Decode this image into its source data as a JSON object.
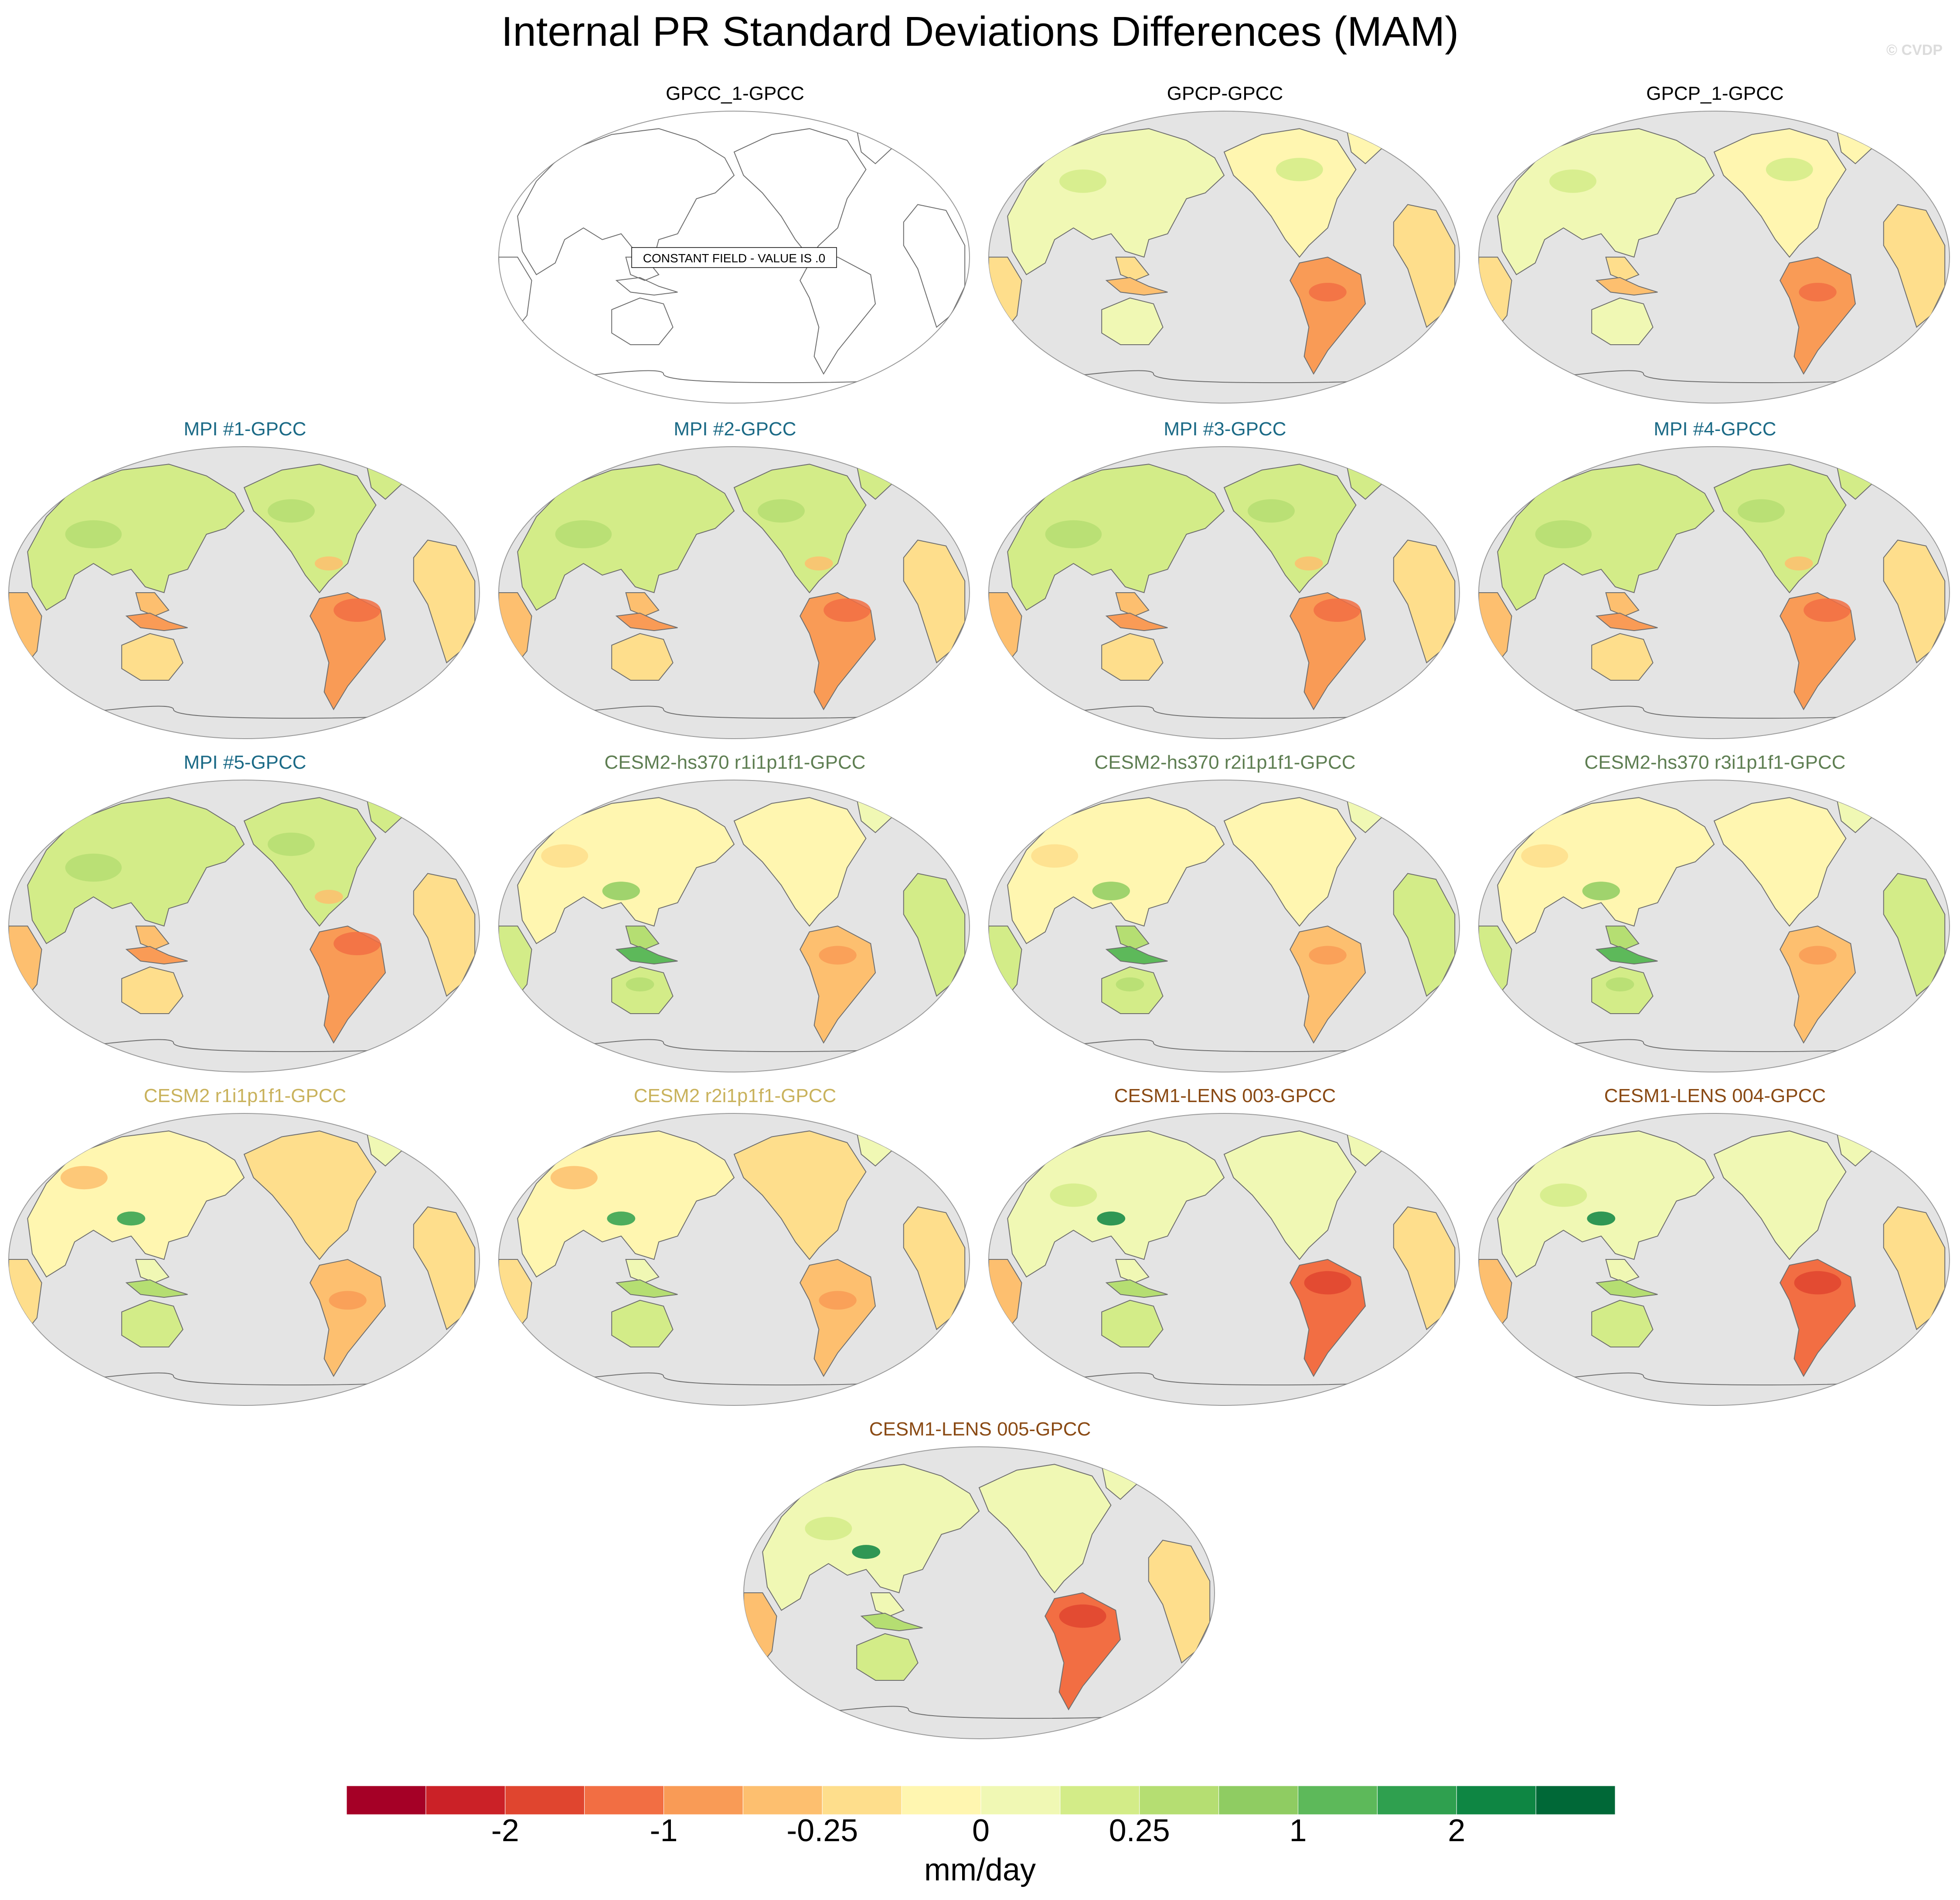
{
  "title": "Internal PR Standard Deviations Differences (MAM)",
  "copyright": "© CVDP",
  "constant_field_note": "CONSTANT FIELD - VALUE IS .0",
  "colors": {
    "ocean": "#e4e4e4",
    "coast": "#6e6e6e",
    "obs_title": "#000000",
    "mpi_title": "#1b6a86",
    "cesm2hs_title": "#5e7e52",
    "cesm2_title": "#c9b25c",
    "cesm1_title": "#8a4a14"
  },
  "panels": [
    {
      "label": "GPCC_1-GPCC",
      "group": "obs",
      "constant": true,
      "pattern": "zero"
    },
    {
      "label": "GPCP-GPCC",
      "group": "obs",
      "constant": false,
      "pattern": "gpcp"
    },
    {
      "label": "GPCP_1-GPCC",
      "group": "obs",
      "constant": false,
      "pattern": "gpcp"
    },
    {
      "label": "MPI #1-GPCC",
      "group": "mpi",
      "constant": false,
      "pattern": "mpi"
    },
    {
      "label": "MPI #2-GPCC",
      "group": "mpi",
      "constant": false,
      "pattern": "mpi"
    },
    {
      "label": "MPI #3-GPCC",
      "group": "mpi",
      "constant": false,
      "pattern": "mpi"
    },
    {
      "label": "MPI #4-GPCC",
      "group": "mpi",
      "constant": false,
      "pattern": "mpi"
    },
    {
      "label": "MPI #5-GPCC",
      "group": "mpi",
      "constant": false,
      "pattern": "mpi"
    },
    {
      "label": "CESM2-hs370 r1i1p1f1-GPCC",
      "group": "cesm2hs",
      "constant": false,
      "pattern": "cesm2hs"
    },
    {
      "label": "CESM2-hs370 r2i1p1f1-GPCC",
      "group": "cesm2hs",
      "constant": false,
      "pattern": "cesm2hs"
    },
    {
      "label": "CESM2-hs370 r3i1p1f1-GPCC",
      "group": "cesm2hs",
      "constant": false,
      "pattern": "cesm2hs"
    },
    {
      "label": "CESM2 r1i1p1f1-GPCC",
      "group": "cesm2",
      "constant": false,
      "pattern": "cesm2"
    },
    {
      "label": "CESM2 r2i1p1f1-GPCC",
      "group": "cesm2",
      "constant": false,
      "pattern": "cesm2"
    },
    {
      "label": "CESM1-LENS 003-GPCC",
      "group": "cesm1",
      "constant": false,
      "pattern": "cesm1"
    },
    {
      "label": "CESM1-LENS 004-GPCC",
      "group": "cesm1",
      "constant": false,
      "pattern": "cesm1"
    },
    {
      "label": "CESM1-LENS 005-GPCC",
      "group": "cesm1",
      "constant": false,
      "pattern": "cesm1"
    }
  ],
  "colorbar": {
    "colors": [
      "#a50026",
      "#cb2127",
      "#e0452f",
      "#f26e43",
      "#f99b56",
      "#fdbf6f",
      "#fede8c",
      "#fff6b0",
      "#f0f8b4",
      "#d3ec88",
      "#b5de72",
      "#8fcc62",
      "#5db95a",
      "#2fa04f",
      "#0e8643",
      "#006837"
    ],
    "tick_labels": [
      "-2",
      "-1",
      "-0.25",
      "0",
      "0.25",
      "1",
      "2"
    ],
    "units": "mm/day"
  },
  "chart_data": {
    "type": "heatmap",
    "title": "Internal PR Standard Deviations Differences (MAM)",
    "projection": "Robinson, Pacific-centered",
    "contour_levels": [
      -2,
      -1,
      -0.25,
      0,
      0.25,
      1,
      2
    ],
    "units": "mm/day",
    "note": "GPCC_1-GPCC: CONSTANT FIELD - VALUE IS .0"
  }
}
